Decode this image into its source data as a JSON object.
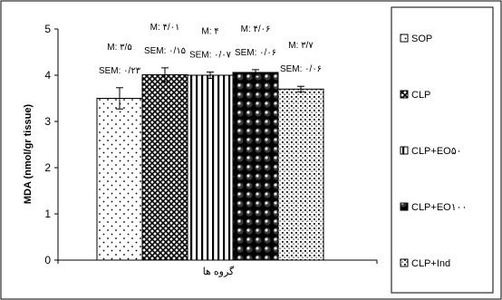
{
  "chart_data": {
    "type": "bar",
    "title": "",
    "ylabel": "MDA (nmol/gr tissue)",
    "xlabel": "گروه ها",
    "ylim": [
      0,
      5
    ],
    "yticks": [
      "0",
      "1",
      "2",
      "3",
      "4",
      "5"
    ],
    "grid": false,
    "legend_position": "right",
    "series": [
      {
        "name": "SOP",
        "value": 3.5,
        "sem": 0.23,
        "mean_label": "M: ۳/۵",
        "sem_label": "SEM: ۰/۲۳",
        "pattern": "dots"
      },
      {
        "name": "CLP",
        "value": 4.01,
        "sem": 0.15,
        "mean_label": "M: ۴/۰۱",
        "sem_label": "SEM: ۰/۱۵",
        "pattern": "crosshatch"
      },
      {
        "name": "CLP+EO۵۰",
        "value": 4.0,
        "sem": 0.07,
        "mean_label": "M: ۴",
        "sem_label": "SEM: ۰/۰۷",
        "pattern": "vertical-stripes"
      },
      {
        "name": "CLP+EO۱۰۰",
        "value": 4.06,
        "sem": 0.06,
        "mean_label": "M: ۴/۰۶",
        "sem_label": "SEM: ۰/۰۶",
        "pattern": "spheres"
      },
      {
        "name": "CLP+Ind",
        "value": 3.7,
        "sem": 0.06,
        "mean_label": "M: ۳/۷",
        "sem_label": "SEM: ۰/۰۶",
        "pattern": "dense-dots"
      }
    ]
  }
}
